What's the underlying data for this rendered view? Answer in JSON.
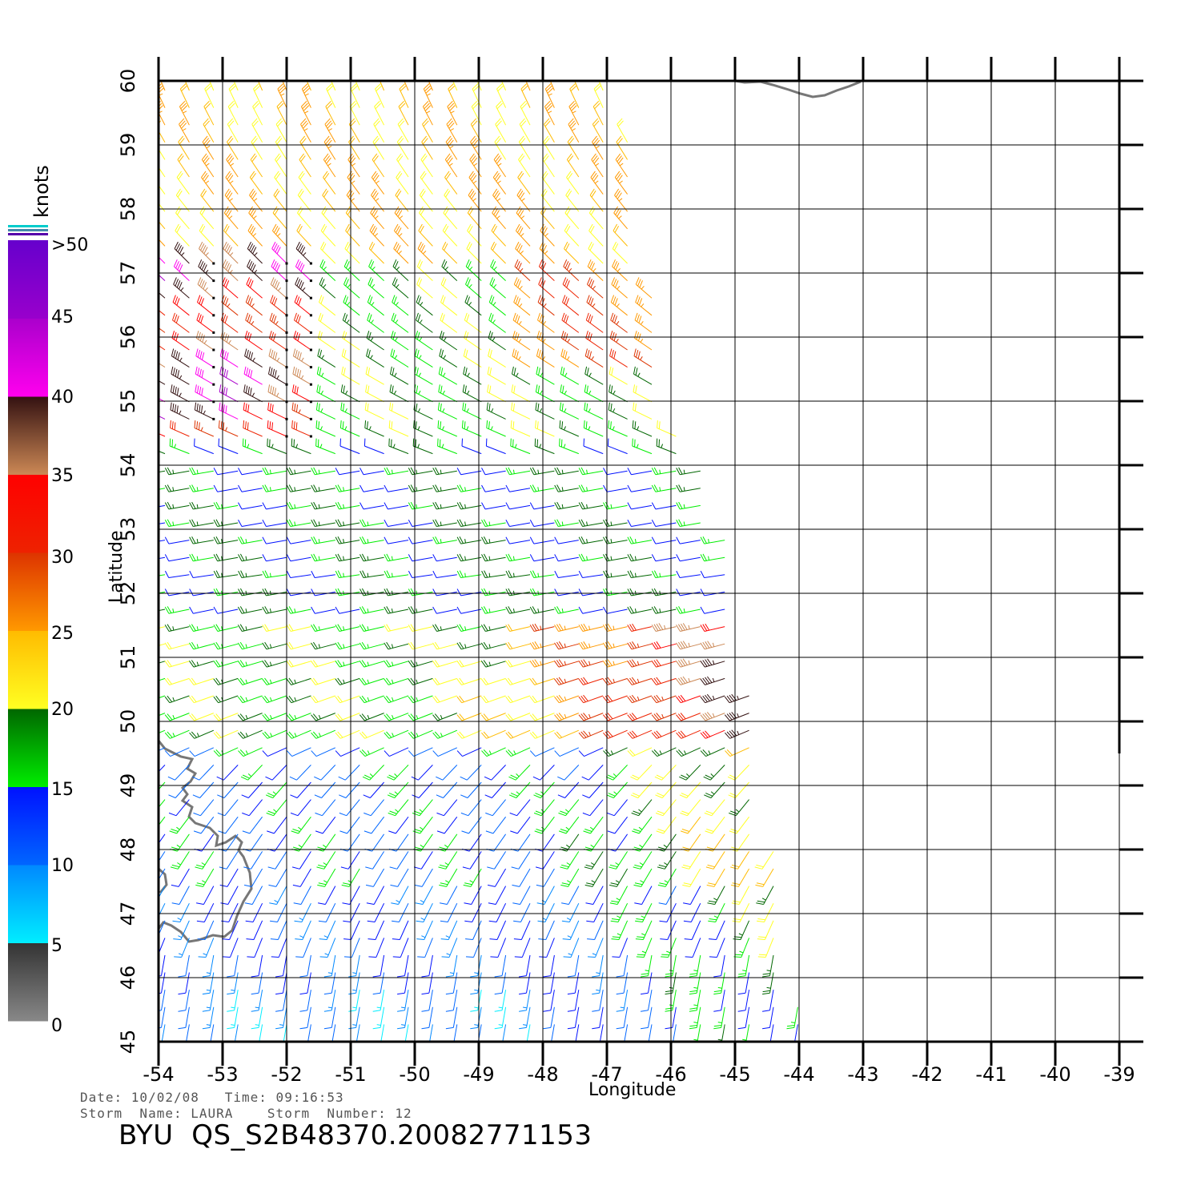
{
  "map": {
    "lon_range": [
      -54,
      -39
    ],
    "lat_range": [
      45,
      60
    ],
    "lon_ticks": [
      "-54",
      "-53",
      "-52",
      "-51",
      "-50",
      "-49",
      "-48",
      "-47",
      "-46",
      "-45",
      "-44",
      "-43",
      "-42",
      "-41",
      "-40",
      "-39"
    ],
    "lat_ticks": [
      "45",
      "46",
      "47",
      "48",
      "49",
      "50",
      "51",
      "52",
      "53",
      "54",
      "55",
      "56",
      "57",
      "58",
      "59",
      "60"
    ],
    "x_label": "Longitude",
    "y_label": "Latitude",
    "grid": true,
    "land_color": "#777777",
    "vector_type": "wind-barbs"
  },
  "legend": {
    "title": "knots",
    "labels": [
      ">50",
      "45",
      "40",
      "35",
      "30",
      "25",
      "20",
      "15",
      "10",
      "5",
      "0"
    ],
    "bands": [
      {
        "range": "0-5",
        "top": "#333333",
        "bottom": "#888888"
      },
      {
        "range": "5-10",
        "top": "#0088ff",
        "bottom": "#00eeff"
      },
      {
        "range": "10-15",
        "top": "#0011ff",
        "bottom": "#0066ff"
      },
      {
        "range": "15-20",
        "top": "#006600",
        "bottom": "#00ee00"
      },
      {
        "range": "20-25",
        "top": "#ffbb00",
        "bottom": "#ffff22"
      },
      {
        "range": "25-30",
        "top": "#dd3300",
        "bottom": "#ff9900"
      },
      {
        "range": "30-35",
        "top": "#ff0000",
        "bottom": "#ee2200"
      },
      {
        "range": "35-40",
        "top": "#331111",
        "bottom": "#cc8855"
      },
      {
        "range": "40-45",
        "top": "#aa00cc",
        "bottom": "#ff00ee"
      },
      {
        "range": "45-50",
        "top": "#6600cc",
        "bottom": "#9900cc"
      }
    ]
  },
  "info": {
    "date_line": "Date: 10/02/08   Time: 09:16:53",
    "storm_line": "Storm  Name: LAURA    Storm  Number: 12",
    "file_title": "BYU  QS_S2B48370.20082771153"
  }
}
